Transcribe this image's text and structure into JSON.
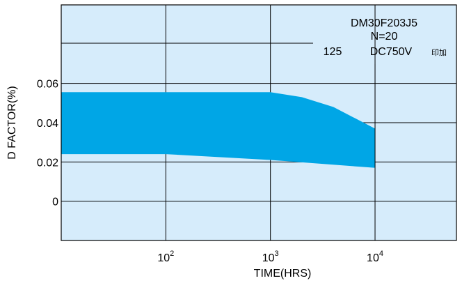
{
  "chart_data": {
    "type": "area",
    "title": "",
    "xlabel": "TIME(HRS)",
    "ylabel": "D FACTOR(%)",
    "x_scale": "log",
    "xlim": [
      10,
      60000
    ],
    "ylim": [
      -0.02,
      0.1
    ],
    "x_ticks": [
      {
        "value": 100,
        "base": "10",
        "exp": "2"
      },
      {
        "value": 1000,
        "base": "10",
        "exp": "3"
      },
      {
        "value": 10000,
        "base": "10",
        "exp": "4"
      }
    ],
    "y_ticks": [
      {
        "value": 0,
        "label": "0"
      },
      {
        "value": 0.02,
        "label": "0.02"
      },
      {
        "value": 0.04,
        "label": "0.04"
      },
      {
        "value": 0.06,
        "label": "0.06"
      }
    ],
    "grid": true,
    "colors": {
      "band": "#00a6e6",
      "plot_bg": "#d6ecfb"
    },
    "band": {
      "upper": [
        {
          "x": 10,
          "y": 0.0555
        },
        {
          "x": 100,
          "y": 0.0555
        },
        {
          "x": 1000,
          "y": 0.0555
        },
        {
          "x": 2000,
          "y": 0.053
        },
        {
          "x": 4000,
          "y": 0.048
        },
        {
          "x": 10000,
          "y": 0.037
        }
      ],
      "lower": [
        {
          "x": 10,
          "y": 0.024
        },
        {
          "x": 100,
          "y": 0.024
        },
        {
          "x": 1000,
          "y": 0.021
        },
        {
          "x": 10000,
          "y": 0.017
        }
      ]
    },
    "annotations": {
      "model": "DM30F203J5",
      "count": "N=20",
      "temp": "125",
      "voltage": "DC750V",
      "applied": "印加"
    }
  }
}
